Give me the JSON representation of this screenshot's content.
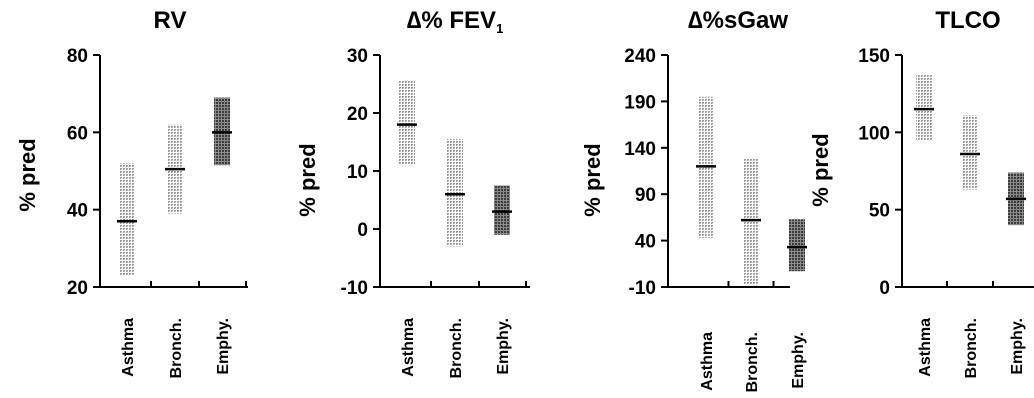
{
  "chart_data": [
    {
      "type": "bar",
      "title": "RV",
      "ylabel": "% pred",
      "ylim": [
        20,
        80
      ],
      "yticks": [
        "20",
        "40",
        "60",
        "80"
      ],
      "categories": [
        "Asthma",
        "Bronch.",
        "Emphy."
      ],
      "series": [
        {
          "low": 23,
          "high": 52,
          "mean": 37,
          "color": "#c9c9c9"
        },
        {
          "low": 39,
          "high": 62,
          "mean": 50.5,
          "color": "#c9c9c9"
        },
        {
          "low": 51.5,
          "high": 69,
          "mean": 60,
          "color": "#707070"
        }
      ]
    },
    {
      "type": "bar",
      "title": "∆% FEV",
      "title_sub": "1",
      "ylabel": "% pred",
      "ylim": [
        -10,
        30
      ],
      "yticks": [
        "-10",
        "0",
        "10",
        "20",
        "30"
      ],
      "categories": [
        "Asthma",
        "Bronch.",
        "Emphy."
      ],
      "series": [
        {
          "low": 11,
          "high": 25.5,
          "mean": 18,
          "color": "#c9c9c9"
        },
        {
          "low": -3,
          "high": 15.5,
          "mean": 6,
          "color": "#c9c9c9"
        },
        {
          "low": -1,
          "high": 7.5,
          "mean": 3,
          "color": "#707070"
        }
      ]
    },
    {
      "type": "bar",
      "title": "∆%sGaw",
      "ylabel": "% pred",
      "ylim": [
        -10,
        240
      ],
      "yticks": [
        "-10",
        "40",
        "90",
        "140",
        "190",
        "240"
      ],
      "categories": [
        "Asthma",
        "Bronch.",
        "Emphy."
      ],
      "series": [
        {
          "low": 43,
          "high": 195,
          "mean": 120,
          "color": "#c9c9c9"
        },
        {
          "low": -8,
          "high": 128,
          "mean": 62,
          "color": "#c9c9c9"
        },
        {
          "low": 7,
          "high": 63,
          "mean": 33,
          "color": "#707070"
        }
      ]
    },
    {
      "type": "bar",
      "title": "TLCO",
      "ylabel": "% pred",
      "ylim": [
        0,
        150
      ],
      "yticks": [
        "0",
        "50",
        "100",
        "150"
      ],
      "categories": [
        "Asthma",
        "Bronch.",
        "Emphy."
      ],
      "series": [
        {
          "low": 95,
          "high": 137,
          "mean": 115,
          "color": "#c9c9c9"
        },
        {
          "low": 63,
          "high": 111,
          "mean": 86,
          "color": "#c9c9c9"
        },
        {
          "low": 40,
          "high": 74,
          "mean": 57,
          "color": "#707070"
        }
      ]
    }
  ]
}
